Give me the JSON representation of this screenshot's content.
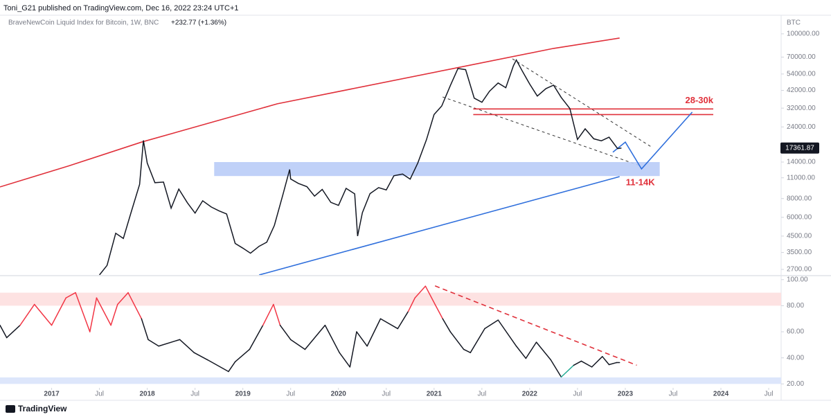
{
  "header": {
    "title": "Toni_G21 published on TradingView.com, Dec 16, 2022 23:24 UTC+1"
  },
  "footer": {
    "logo": "TradingView"
  },
  "chart_data": [
    {
      "type": "line",
      "subtitle": "BraveNewCoin Liquid Index for Bitcoin, 1W, BNC",
      "change_label": "+232.77 (+1.36%)",
      "ylabel": "BTC",
      "log_scale": true,
      "grid": false,
      "color": "#131722",
      "last_price": 17361.87,
      "xlim": [
        2016.46,
        2024.63
      ],
      "ylim": [
        2480,
        133000
      ],
      "yticks": [
        {
          "value": 100000,
          "label": "100000.00"
        },
        {
          "value": 70000,
          "label": "70000.00"
        },
        {
          "value": 54000,
          "label": "54000.00"
        },
        {
          "value": 42000,
          "label": "42000.00"
        },
        {
          "value": 32000,
          "label": "32000.00"
        },
        {
          "value": 24000,
          "label": "24000.00"
        },
        {
          "value": 14000,
          "label": "14000.00"
        },
        {
          "value": 11000,
          "label": "11000.00"
        },
        {
          "value": 8000,
          "label": "8000.00"
        },
        {
          "value": 6000,
          "label": "6000.00"
        },
        {
          "value": 4500,
          "label": "4500.00"
        },
        {
          "value": 3500,
          "label": "3500.00"
        },
        {
          "value": 2700,
          "label": "2700.00"
        }
      ],
      "x": [
        2017.5,
        2017.58,
        2017.67,
        2017.75,
        2017.83,
        2017.92,
        2017.96,
        2018.0,
        2018.08,
        2018.17,
        2018.25,
        2018.33,
        2018.42,
        2018.5,
        2018.58,
        2018.67,
        2018.75,
        2018.83,
        2018.92,
        2019.0,
        2019.08,
        2019.17,
        2019.25,
        2019.33,
        2019.42,
        2019.49,
        2019.5,
        2019.58,
        2019.67,
        2019.75,
        2019.83,
        2019.92,
        2020.0,
        2020.08,
        2020.17,
        2020.2,
        2020.25,
        2020.33,
        2020.42,
        2020.5,
        2020.58,
        2020.67,
        2020.75,
        2020.83,
        2020.92,
        2021.0,
        2021.08,
        2021.17,
        2021.25,
        2021.33,
        2021.42,
        2021.5,
        2021.58,
        2021.67,
        2021.75,
        2021.83,
        2021.86,
        2021.92,
        2022.0,
        2022.08,
        2022.17,
        2022.25,
        2022.33,
        2022.42,
        2022.5,
        2022.58,
        2022.67,
        2022.75,
        2022.83,
        2022.92,
        2022.96
      ],
      "values": [
        2480,
        2870,
        4700,
        4340,
        6450,
        9950,
        19500,
        13800,
        10200,
        10300,
        6900,
        9250,
        7500,
        6400,
        7730,
        7030,
        6630,
        6320,
        4020,
        3740,
        3460,
        3850,
        4100,
        5300,
        8550,
        12500,
        10800,
        10100,
        9600,
        8300,
        9200,
        7550,
        7200,
        9350,
        8600,
        4500,
        6440,
        8630,
        9460,
        9140,
        11350,
        11650,
        10780,
        13800,
        19700,
        29000,
        33100,
        45200,
        58800,
        57700,
        37300,
        35000,
        41500,
        47100,
        43800,
        61300,
        67000,
        57000,
        46300,
        38500,
        43200,
        45500,
        37700,
        31800,
        19800,
        23300,
        20000,
        19400,
        20500,
        17200,
        17361.87
      ],
      "drawings": [
        {
          "kind": "line",
          "color": "#e0303a",
          "points": [
            [
              2016.46,
              9560
            ],
            [
              2017.18,
              13200
            ],
            [
              2017.94,
              19000
            ],
            [
              2019.36,
              34200
            ],
            [
              2021.17,
              58200
            ],
            [
              2022.25,
              80000
            ],
            [
              2022.94,
              93800
            ]
          ]
        },
        {
          "kind": "line",
          "color": "#2f6fdc",
          "points": [
            [
              2019.17,
              2480
            ],
            [
              2022.94,
              11200
            ]
          ]
        },
        {
          "kind": "dashed",
          "color": "#333333",
          "points": [
            [
              2021.82,
              68200
            ],
            [
              2023.27,
              17700
            ]
          ]
        },
        {
          "kind": "dashed",
          "color": "#333333",
          "points": [
            [
              2021.09,
              38000
            ],
            [
              2023.16,
              13200
            ]
          ]
        },
        {
          "kind": "line",
          "color": "#e0303a",
          "points": [
            [
              2021.41,
              31600
            ],
            [
              2023.92,
              31600
            ]
          ],
          "label": "28-30k"
        },
        {
          "kind": "line",
          "color": "#e0303a",
          "points": [
            [
              2021.41,
              29000
            ],
            [
              2023.92,
              29000
            ]
          ]
        },
        {
          "kind": "zone",
          "color": "#b9ccf7",
          "points": [
            [
              2018.7,
              14000
            ],
            [
              2023.36,
              11300
            ]
          ],
          "label": "11-14K"
        },
        {
          "kind": "line",
          "color": "#2f6fdc",
          "points": [
            [
              2022.87,
              16300
            ],
            [
              2023.0,
              19000
            ],
            [
              2023.17,
              12600
            ],
            [
              2023.7,
              30100
            ]
          ]
        }
      ]
    },
    {
      "type": "line",
      "log_scale": false,
      "grid": false,
      "color": "#131722",
      "overbought_level": 70,
      "overbought_color": "#f23645",
      "oversold_level": 30,
      "oversold_color": "#22ab94",
      "xlim": [
        2016.46,
        2024.63
      ],
      "ylim": [
        17,
        102
      ],
      "yticks": [
        {
          "value": 100,
          "label": "100.00"
        },
        {
          "value": 80,
          "label": "80.00"
        },
        {
          "value": 60,
          "label": "60.00"
        },
        {
          "value": 40,
          "label": "40.00"
        },
        {
          "value": 20,
          "label": "20.00"
        }
      ],
      "xticks": [
        2017,
        {
          "value": 2017.5,
          "label": "Jul"
        },
        2018,
        {
          "value": 2018.5,
          "label": "Jul"
        },
        2019,
        {
          "value": 2019.5,
          "label": "Jul"
        },
        2020,
        {
          "value": 2020.5,
          "label": "Jul"
        },
        2021,
        {
          "value": 2021.5,
          "label": "Jul"
        },
        2022,
        {
          "value": 2022.5,
          "label": "Jul"
        },
        2023,
        {
          "value": 2023.5,
          "label": "Jul"
        },
        2024,
        {
          "value": 2024.5,
          "label": "Jul"
        }
      ],
      "bands": [
        {
          "from": 80,
          "to": 90,
          "color": "#fde2e2"
        },
        {
          "from": 20,
          "to": 25,
          "color": "#dde6fb"
        }
      ],
      "x": [
        2016.46,
        2016.53,
        2016.67,
        2016.82,
        2017.0,
        2017.15,
        2017.25,
        2017.4,
        2017.47,
        2017.62,
        2017.69,
        2017.8,
        2017.94,
        2018.01,
        2018.12,
        2018.34,
        2018.49,
        2018.63,
        2018.85,
        2018.92,
        2019.07,
        2019.21,
        2019.32,
        2019.39,
        2019.5,
        2019.65,
        2019.86,
        2020.01,
        2020.12,
        2020.19,
        2020.3,
        2020.44,
        2020.62,
        2020.73,
        2020.8,
        2020.91,
        2021.01,
        2021.09,
        2021.17,
        2021.31,
        2021.38,
        2021.53,
        2021.67,
        2021.86,
        2021.96,
        2022.07,
        2022.22,
        2022.33,
        2022.46,
        2022.54,
        2022.65,
        2022.76,
        2022.83,
        2022.91,
        2022.94
      ],
      "values": [
        65,
        55.5,
        65,
        81,
        65,
        86,
        90,
        60,
        86,
        65,
        81,
        90,
        70,
        54,
        49,
        54,
        44,
        38.5,
        29.5,
        37,
        46.5,
        65,
        81,
        65,
        54,
        46.5,
        65,
        44,
        33,
        60,
        49,
        70,
        62.4,
        75.6,
        86,
        95,
        81,
        70,
        60,
        46.5,
        44,
        62.4,
        69,
        49,
        39.6,
        52,
        38.5,
        25.3,
        34.3,
        37.5,
        33,
        41,
        34.8,
        36.4,
        36.4
      ],
      "drawings": [
        {
          "kind": "dashed",
          "color": "#e0303a",
          "points": [
            [
              2021.01,
              95.2
            ],
            [
              2023.12,
              34.3
            ]
          ]
        }
      ]
    }
  ]
}
